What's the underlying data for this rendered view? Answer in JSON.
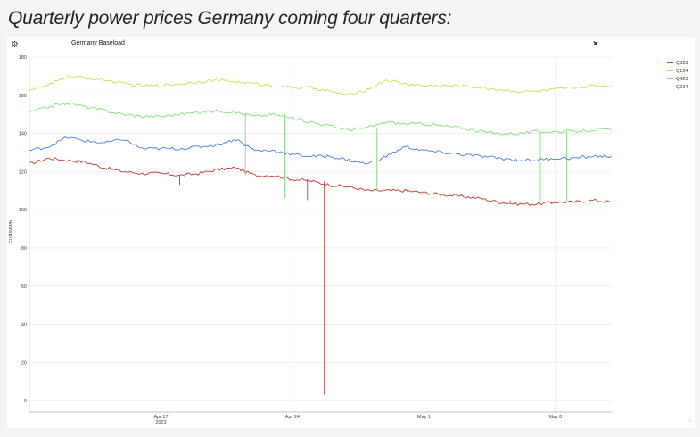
{
  "page": {
    "headline": "Quarterly power prices Germany coming four quarters:"
  },
  "panel": {
    "gear_icon": "gear-icon",
    "close_label": "×",
    "close_icon": "close-icon"
  },
  "chart_data": {
    "type": "line",
    "title": "Germany Baseload",
    "xlabel": "",
    "ylabel": "EUR/MWh",
    "ylim": [
      -6,
      180
    ],
    "yticks": [
      0,
      20,
      40,
      60,
      80,
      100,
      120,
      140,
      160,
      180
    ],
    "xlim": [
      "2023-04-10",
      "2023-05-11"
    ],
    "xticks": [
      {
        "date": "2023-04-17",
        "label": "Apr 17",
        "sublabel": "2023"
      },
      {
        "date": "2023-04-24",
        "label": "Apr 24",
        "sublabel": ""
      },
      {
        "date": "2023-05-01",
        "label": "May 1",
        "sublabel": ""
      },
      {
        "date": "2023-05-08",
        "label": "May 8",
        "sublabel": ""
      }
    ],
    "grid": true,
    "legend_position": "right",
    "series": [
      {
        "name": "Q323",
        "color": "#c0392b",
        "points": [
          [
            "2023-04-10",
            124
          ],
          [
            "2023-04-11",
            127
          ],
          [
            "2023-04-12",
            126
          ],
          [
            "2023-04-13",
            125
          ],
          [
            "2023-04-14",
            122
          ],
          [
            "2023-04-15",
            120
          ],
          [
            "2023-04-16",
            119
          ],
          [
            "2023-04-17",
            119
          ],
          [
            "2023-04-18",
            118
          ],
          [
            "2023-04-19",
            119
          ],
          [
            "2023-04-20",
            121
          ],
          [
            "2023-04-21",
            122
          ],
          [
            "2023-04-22",
            118
          ],
          [
            "2023-04-23",
            118
          ],
          [
            "2023-04-24",
            116
          ],
          [
            "2023-04-25",
            115
          ],
          [
            "2023-04-26",
            113
          ],
          [
            "2023-04-27",
            112
          ],
          [
            "2023-04-28",
            110
          ],
          [
            "2023-04-29",
            110
          ],
          [
            "2023-04-30",
            110
          ],
          [
            "2023-05-01",
            109
          ],
          [
            "2023-05-02",
            108
          ],
          [
            "2023-05-03",
            107
          ],
          [
            "2023-05-04",
            106
          ],
          [
            "2023-05-05",
            104
          ],
          [
            "2023-05-06",
            103
          ],
          [
            "2023-05-07",
            103
          ],
          [
            "2023-05-08",
            104
          ],
          [
            "2023-05-09",
            104
          ],
          [
            "2023-05-10",
            105
          ],
          [
            "2023-05-11",
            104
          ]
        ],
        "spikes": [
          [
            "2023-04-18",
            113
          ],
          [
            "2023-04-24.8",
            105
          ],
          [
            "2023-04-25.7",
            3
          ],
          [
            "2023-05-05.6",
            105
          ],
          [
            "2023-05-07.8",
            104
          ],
          [
            "2023-05-09.4",
            104
          ]
        ]
      },
      {
        "name": "Q124",
        "color": "#c8dc4a",
        "points": [
          [
            "2023-04-10",
            163
          ],
          [
            "2023-04-11",
            165
          ],
          [
            "2023-04-12",
            170
          ],
          [
            "2023-04-13",
            169
          ],
          [
            "2023-04-14",
            168
          ],
          [
            "2023-04-15",
            166
          ],
          [
            "2023-04-16",
            165
          ],
          [
            "2023-04-17",
            165
          ],
          [
            "2023-04-18",
            166
          ],
          [
            "2023-04-19",
            167
          ],
          [
            "2023-04-20",
            168
          ],
          [
            "2023-04-21",
            167
          ],
          [
            "2023-04-22",
            166
          ],
          [
            "2023-04-23",
            165
          ],
          [
            "2023-04-24",
            164
          ],
          [
            "2023-04-25",
            164
          ],
          [
            "2023-04-26",
            162
          ],
          [
            "2023-04-27",
            160
          ],
          [
            "2023-04-28",
            163
          ],
          [
            "2023-04-29",
            168
          ],
          [
            "2023-04-30",
            166
          ],
          [
            "2023-05-01",
            165
          ],
          [
            "2023-05-02",
            165
          ],
          [
            "2023-05-03",
            165
          ],
          [
            "2023-05-04",
            164
          ],
          [
            "2023-05-05",
            163
          ],
          [
            "2023-05-06",
            162
          ],
          [
            "2023-05-07",
            162
          ],
          [
            "2023-05-08",
            163
          ],
          [
            "2023-05-09",
            164
          ],
          [
            "2023-05-10",
            165
          ],
          [
            "2023-05-11",
            165
          ]
        ],
        "spikes": []
      },
      {
        "name": "Q423",
        "color": "#7fe07a",
        "points": [
          [
            "2023-04-10",
            151
          ],
          [
            "2023-04-11",
            154
          ],
          [
            "2023-04-12",
            156
          ],
          [
            "2023-04-13",
            154
          ],
          [
            "2023-04-14",
            152
          ],
          [
            "2023-04-15",
            150
          ],
          [
            "2023-04-16",
            149
          ],
          [
            "2023-04-17",
            149
          ],
          [
            "2023-04-18",
            150
          ],
          [
            "2023-04-19",
            151
          ],
          [
            "2023-04-20",
            152
          ],
          [
            "2023-04-21",
            151
          ],
          [
            "2023-04-22",
            149
          ],
          [
            "2023-04-23",
            150
          ],
          [
            "2023-04-24",
            148
          ],
          [
            "2023-04-25",
            146
          ],
          [
            "2023-04-26",
            144
          ],
          [
            "2023-04-27",
            142
          ],
          [
            "2023-04-28",
            143
          ],
          [
            "2023-04-29",
            146
          ],
          [
            "2023-04-30",
            145
          ],
          [
            "2023-05-01",
            145
          ],
          [
            "2023-05-02",
            144
          ],
          [
            "2023-05-03",
            143
          ],
          [
            "2023-05-04",
            141
          ],
          [
            "2023-05-05",
            140
          ],
          [
            "2023-05-06",
            140
          ],
          [
            "2023-05-07",
            141
          ],
          [
            "2023-05-08",
            141
          ],
          [
            "2023-05-09",
            141
          ],
          [
            "2023-05-10",
            142
          ],
          [
            "2023-05-11",
            142
          ]
        ],
        "spikes": [
          [
            "2023-04-21.5",
            118
          ],
          [
            "2023-04-23.6",
            106
          ],
          [
            "2023-04-28.5",
            110
          ],
          [
            "2023-05-07.2",
            104
          ],
          [
            "2023-05-08.6",
            104
          ]
        ]
      },
      {
        "name": "Q224",
        "color": "#4a7bd4",
        "points": [
          [
            "2023-04-10",
            131
          ],
          [
            "2023-04-11",
            133
          ],
          [
            "2023-04-12",
            138
          ],
          [
            "2023-04-13",
            136
          ],
          [
            "2023-04-14",
            135
          ],
          [
            "2023-04-15",
            137
          ],
          [
            "2023-04-16",
            132
          ],
          [
            "2023-04-17",
            132
          ],
          [
            "2023-04-18",
            132
          ],
          [
            "2023-04-19",
            133
          ],
          [
            "2023-04-20",
            134
          ],
          [
            "2023-04-21",
            137
          ],
          [
            "2023-04-22",
            131
          ],
          [
            "2023-04-23",
            131
          ],
          [
            "2023-04-24",
            129
          ],
          [
            "2023-04-25",
            128
          ],
          [
            "2023-04-26",
            128
          ],
          [
            "2023-04-27",
            126
          ],
          [
            "2023-04-28",
            124
          ],
          [
            "2023-04-29",
            128
          ],
          [
            "2023-04-30",
            133
          ],
          [
            "2023-05-01",
            131
          ],
          [
            "2023-05-02",
            130
          ],
          [
            "2023-05-03",
            129
          ],
          [
            "2023-05-04",
            128
          ],
          [
            "2023-05-05",
            127
          ],
          [
            "2023-05-06",
            126
          ],
          [
            "2023-05-07",
            126
          ],
          [
            "2023-05-08",
            127
          ],
          [
            "2023-05-09",
            127
          ],
          [
            "2023-05-10",
            128
          ],
          [
            "2023-05-11",
            128
          ]
        ],
        "spikes": []
      }
    ]
  }
}
